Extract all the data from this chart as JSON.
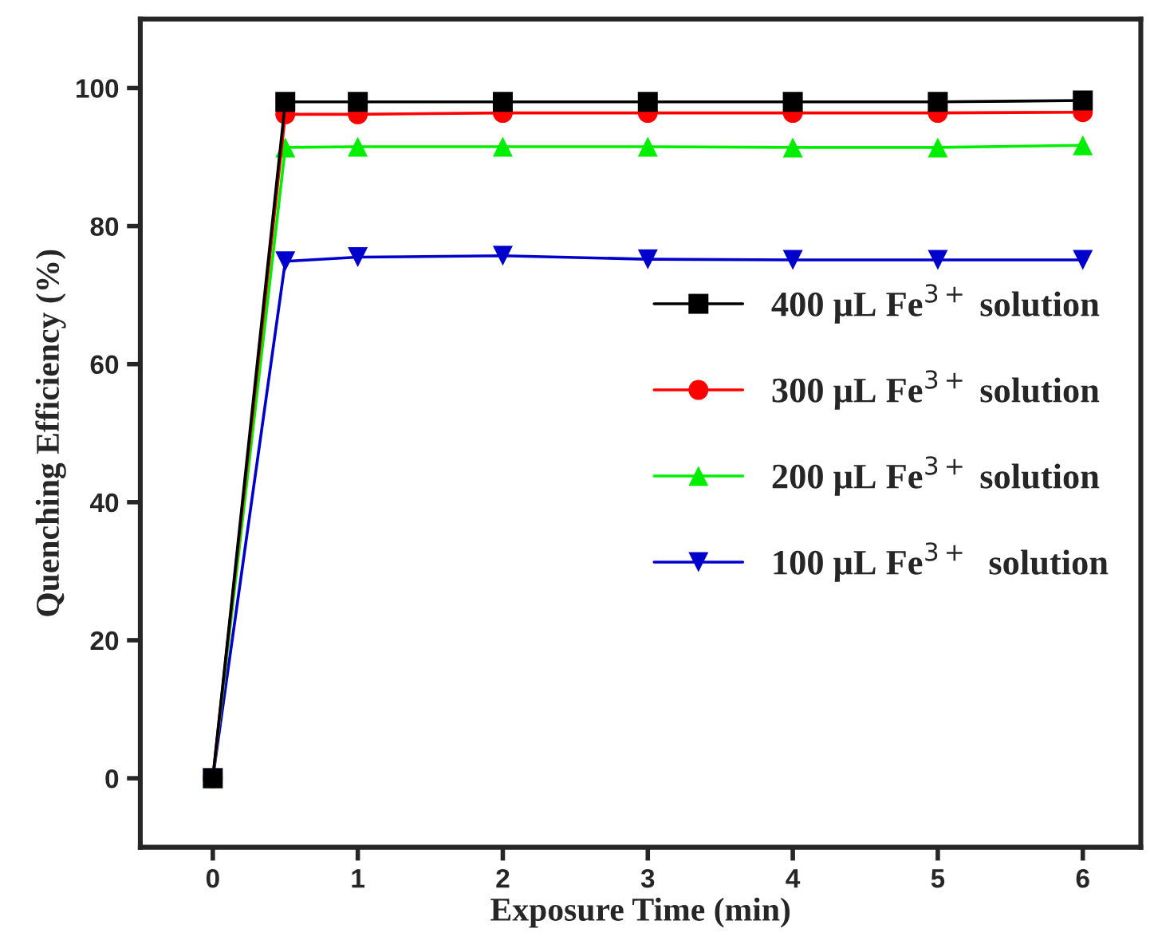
{
  "chart_data": {
    "type": "line",
    "xlabel": "Exposure Time (min)",
    "ylabel": "Quenching Efficiency (%)",
    "x": [
      0,
      0.5,
      1,
      2,
      3,
      4,
      5,
      6
    ],
    "series": [
      {
        "name": "400 μL Fe$^{3+}$ solution",
        "color": "#000000",
        "marker": "square",
        "values": [
          0,
          98.0,
          98.0,
          98.0,
          98.0,
          98.0,
          98.0,
          98.2
        ]
      },
      {
        "name": "300 μL Fe$^{3+}$ solution",
        "color": "#ff0000",
        "marker": "circle",
        "values": [
          0,
          96.2,
          96.2,
          96.4,
          96.4,
          96.4,
          96.4,
          96.5
        ]
      },
      {
        "name": "200 μL Fe$^{3+}$ solution",
        "color": "#00ee00",
        "marker": "triangle",
        "values": [
          0,
          91.4,
          91.5,
          91.5,
          91.5,
          91.4,
          91.4,
          91.7
        ]
      },
      {
        "name": "100 μL Fe$^{3+}$  solution",
        "color": "#0000cc",
        "marker": "triangle_down",
        "values": [
          0,
          74.9,
          75.5,
          75.7,
          75.2,
          75.1,
          75.1,
          75.1
        ]
      }
    ],
    "xlim": [
      -0.5,
      6.4
    ],
    "ylim": [
      -10,
      110
    ],
    "xticks": [
      0,
      1,
      2,
      3,
      4,
      5,
      6
    ],
    "yticks": [
      0,
      20,
      40,
      60,
      80,
      100
    ],
    "grid": false,
    "legend": "right",
    "line_style": "solid"
  }
}
